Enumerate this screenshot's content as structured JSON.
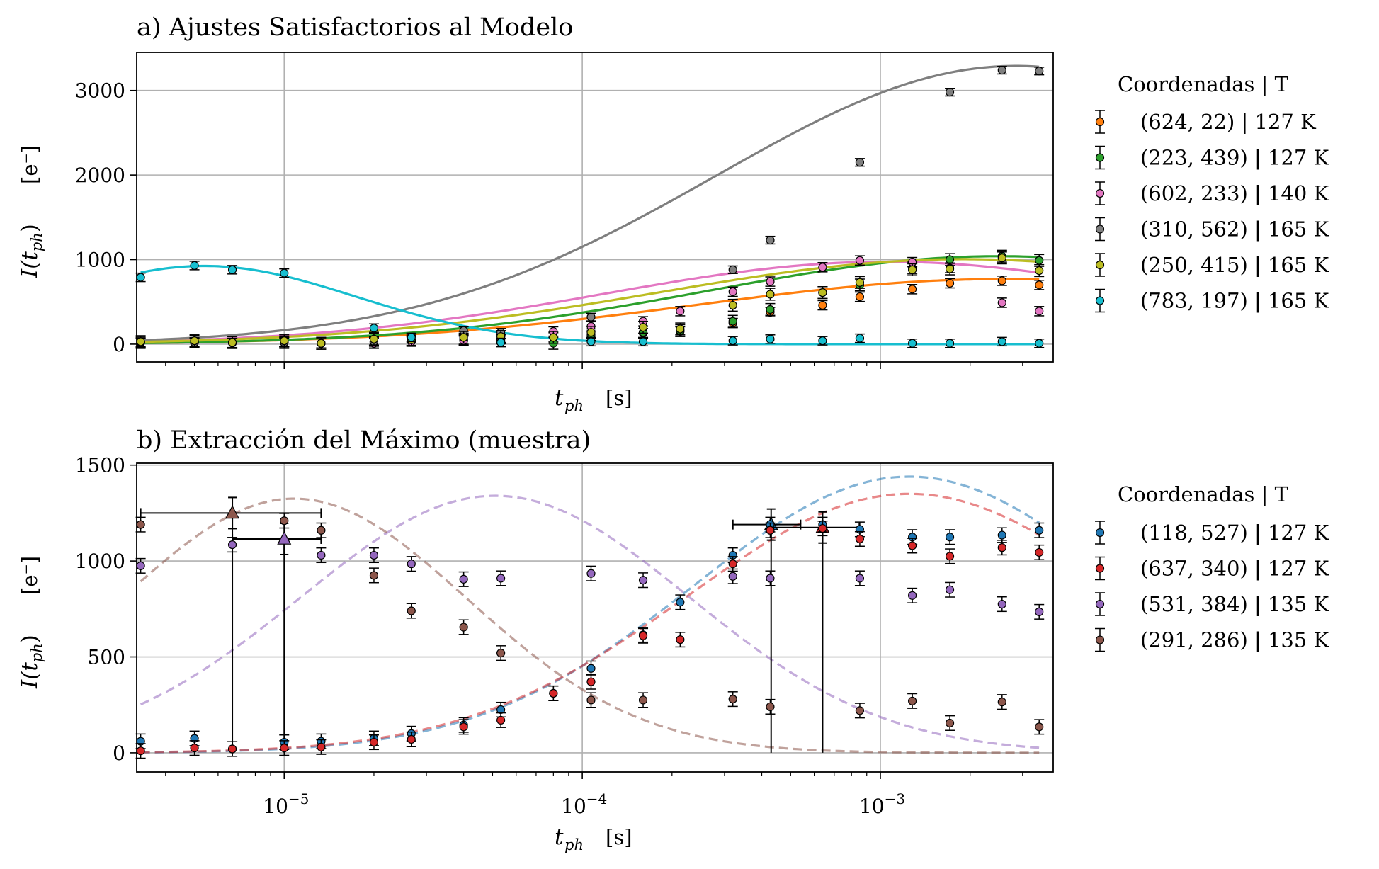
{
  "chart_data": [
    {
      "type": "scatter",
      "title": "a) Ajustes Satisfactorios al Modelo",
      "xlabel_main": "t",
      "xlabel_sub": "ph",
      "xlabel_unit": "[s]",
      "ylabel_main": "I(t",
      "ylabel_sub": "ph",
      "ylabel_close": ")",
      "ylabel_unit": "[e⁻]",
      "xscale": "log",
      "xlim": [
        3.2e-06,
        0.0038
      ],
      "ylim": [
        -210,
        3450
      ],
      "yticks": [
        0,
        1000,
        2000,
        3000
      ],
      "ytick_labels": [
        "0",
        "1000",
        "2000",
        "3000"
      ],
      "grid": true,
      "legend_title": "Coordenadas | T",
      "legend_position": "right",
      "series": [
        {
          "name": "(624, 22) | 127 K",
          "color": "#ff7f0e",
          "x": [
            3.3e-06,
            5e-06,
            6.7e-06,
            1e-05,
            1.33e-05,
            2e-05,
            2.67e-05,
            4e-05,
            5.33e-05,
            8e-05,
            0.000107,
            0.00016,
            0.000213,
            0.00032,
            0.000427,
            0.00064,
            0.000853,
            0.00128,
            0.00171,
            0.00256,
            0.00341
          ],
          "y": [
            20,
            20,
            15,
            25,
            10,
            30,
            40,
            50,
            60,
            80,
            100,
            130,
            150,
            250,
            380,
            460,
            560,
            650,
            720,
            750,
            700
          ],
          "fit": {
            "amp": 770,
            "peak": 0.0026,
            "width": 1.45
          }
        },
        {
          "name": "(223, 439) | 127 K",
          "color": "#2ca02c",
          "x": [
            3.3e-06,
            5e-06,
            6.7e-06,
            1e-05,
            1.33e-05,
            2e-05,
            2.67e-05,
            4e-05,
            5.33e-05,
            8e-05,
            0.000107,
            0.00016,
            0.000213,
            0.00032,
            0.000427,
            0.00064,
            0.000853,
            0.00128,
            0.00171,
            0.00256,
            0.00341
          ],
          "y": [
            20,
            30,
            20,
            20,
            10,
            20,
            50,
            60,
            40,
            10,
            110,
            140,
            160,
            270,
            410,
            610,
            700,
            900,
            1000,
            1040,
            990
          ],
          "fit": {
            "amp": 1040,
            "peak": 0.0025,
            "width": 1.38
          }
        },
        {
          "name": "(602, 233) | 140 K",
          "color": "#e377c2",
          "x": [
            3.3e-06,
            5e-06,
            6.7e-06,
            1e-05,
            1.33e-05,
            2e-05,
            2.67e-05,
            4e-05,
            5.33e-05,
            8e-05,
            0.000107,
            0.00016,
            0.000213,
            0.00032,
            0.000427,
            0.00064,
            0.000853,
            0.00128,
            0.00171,
            0.00256,
            0.00341
          ],
          "y": [
            20,
            20,
            15,
            20,
            10,
            10,
            30,
            40,
            60,
            150,
            210,
            270,
            390,
            620,
            740,
            910,
            990,
            970,
            900,
            490,
            390
          ],
          "fit": {
            "amp": 975,
            "peak": 0.00105,
            "width": 1.35
          }
        },
        {
          "name": "(310, 562) | 165 K",
          "color": "#7f7f7f",
          "x": [
            3.3e-06,
            5e-06,
            1e-05,
            2e-05,
            2.67e-05,
            4e-05,
            5.33e-05,
            0.000107,
            0.00032,
            0.000427,
            0.000853,
            0.00171,
            0.00256,
            0.00341
          ],
          "y": [
            20,
            20,
            20,
            30,
            60,
            160,
            140,
            320,
            880,
            1230,
            2150,
            2980,
            3240,
            3230
          ],
          "fit": {
            "amp": 3290,
            "peak": 0.00285,
            "width": 1.42
          }
        },
        {
          "name": "(250, 415) | 165 K",
          "color": "#bcbd22",
          "x": [
            3.3e-06,
            5e-06,
            6.7e-06,
            1e-05,
            1.33e-05,
            2e-05,
            2.67e-05,
            4e-05,
            5.33e-05,
            8e-05,
            0.000107,
            0.00016,
            0.000213,
            0.00032,
            0.000427,
            0.00064,
            0.000853,
            0.00128,
            0.00171,
            0.00256,
            0.00341
          ],
          "y": [
            30,
            40,
            20,
            40,
            10,
            60,
            50,
            80,
            90,
            80,
            140,
            200,
            180,
            460,
            590,
            610,
            730,
            880,
            890,
            1020,
            870
          ],
          "fit": {
            "amp": 1005,
            "peak": 0.0019,
            "width": 1.45
          }
        },
        {
          "name": "(783, 197) | 165 K",
          "color": "#17becf",
          "x": [
            3.3e-06,
            5e-06,
            6.7e-06,
            1e-05,
            2e-05,
            2.67e-05,
            5.33e-05,
            0.000107,
            0.00016,
            0.00032,
            0.000427,
            0.00064,
            0.000853,
            0.00128,
            0.00171,
            0.00256,
            0.00341
          ],
          "y": [
            790,
            930,
            880,
            840,
            190,
            80,
            20,
            30,
            30,
            40,
            60,
            40,
            70,
            10,
            10,
            30,
            10
          ],
          "fit": {
            "amp": 925,
            "peak": 5.4e-06,
            "width": 0.72
          }
        }
      ]
    },
    {
      "type": "scatter",
      "title": "b) Extracción del Máximo (muestra)",
      "xlabel_main": "t",
      "xlabel_sub": "ph",
      "xlabel_unit": "[s]",
      "ylabel_main": "I(t",
      "ylabel_sub": "ph",
      "ylabel_close": ")",
      "ylabel_unit": "[e⁻]",
      "xscale": "log",
      "xlim": [
        3.2e-06,
        0.0038
      ],
      "ylim": [
        -100,
        1510
      ],
      "yticks": [
        0,
        500,
        1000,
        1500
      ],
      "ytick_labels": [
        "0",
        "500",
        "1000",
        "1500"
      ],
      "xticks": [
        1e-05,
        0.0001,
        0.001
      ],
      "xtick_base": "10",
      "xtick_exps": [
        "−5",
        "−4",
        "−3"
      ],
      "grid": true,
      "legend_title": "Coordenadas | T",
      "legend_position": "right",
      "series": [
        {
          "name": "(118, 527) | 127 K",
          "color": "#1f77b4",
          "x": [
            3.3e-06,
            5e-06,
            6.7e-06,
            1e-05,
            1.33e-05,
            2e-05,
            2.67e-05,
            4e-05,
            5.33e-05,
            8e-05,
            0.000107,
            0.00016,
            0.000213,
            0.00032,
            0.000427,
            0.00064,
            0.000853,
            0.00128,
            0.00171,
            0.00256,
            0.00341
          ],
          "y": [
            60,
            75,
            20,
            55,
            60,
            75,
            100,
            145,
            225,
            310,
            440,
            615,
            785,
            1030,
            1190,
            1190,
            1165,
            1125,
            1125,
            1135,
            1160
          ],
          "fit": {
            "amp": 1440,
            "peak": 0.00125,
            "width": 1.02
          },
          "max_marker": {
            "x": 0.00043,
            "y": 1190,
            "xerr_lo": 0.00032,
            "xerr_hi": 0.00054
          }
        },
        {
          "name": "(637, 340) | 127 K",
          "color": "#d62728",
          "x": [
            3.3e-06,
            5e-06,
            6.7e-06,
            1e-05,
            1.33e-05,
            2e-05,
            2.67e-05,
            4e-05,
            5.33e-05,
            8e-05,
            0.000107,
            0.00016,
            0.000213,
            0.00032,
            0.000427,
            0.00064,
            0.000853,
            0.00128,
            0.00171,
            0.00256,
            0.00341
          ],
          "y": [
            10,
            25,
            20,
            25,
            30,
            55,
            70,
            135,
            170,
            310,
            370,
            610,
            590,
            985,
            1160,
            1170,
            1115,
            1080,
            1025,
            1070,
            1045
          ],
          "fit": {
            "amp": 1350,
            "peak": 0.00125,
            "width": 1.05
          },
          "max_marker": {
            "x": 0.00064,
            "y": 1175,
            "xerr_lo": 0.00043,
            "xerr_hi": 0.00085
          }
        },
        {
          "name": "(531, 384) | 135 K",
          "color": "#9467bd",
          "x": [
            3.3e-06,
            6.7e-06,
            1.33e-05,
            2e-05,
            2.67e-05,
            4e-05,
            5.33e-05,
            0.000107,
            0.00016,
            0.00032,
            0.000427,
            0.000853,
            0.00128,
            0.00171,
            0.00256,
            0.00341
          ],
          "y": [
            975,
            1085,
            1030,
            1030,
            985,
            905,
            910,
            935,
            900,
            920,
            910,
            910,
            820,
            850,
            775,
            735
          ],
          "fit": {
            "amp": 1340,
            "peak": 5.1e-05,
            "width": 0.92
          },
          "max_marker": {
            "x": 1e-05,
            "y": 1115,
            "xerr_lo": 6.7e-06,
            "xerr_hi": 1.33e-05
          }
        },
        {
          "name": "(291, 286) | 135 K",
          "color": "#8c564b",
          "x": [
            3.3e-06,
            1e-05,
            1.33e-05,
            2e-05,
            2.67e-05,
            4e-05,
            5.33e-05,
            0.000107,
            0.00016,
            0.00032,
            0.000427,
            0.000853,
            0.00128,
            0.00171,
            0.00256,
            0.00341
          ],
          "y": [
            1190,
            1210,
            1160,
            925,
            740,
            655,
            520,
            275,
            275,
            280,
            240,
            220,
            270,
            155,
            265,
            135
          ],
          "fit": {
            "amp": 1325,
            "peak": 1.08e-05,
            "width": 0.82
          },
          "max_marker": {
            "x": 6.7e-06,
            "y": 1250,
            "xerr_lo": 3.3e-06,
            "xerr_hi": 1.33e-05
          }
        }
      ]
    }
  ]
}
